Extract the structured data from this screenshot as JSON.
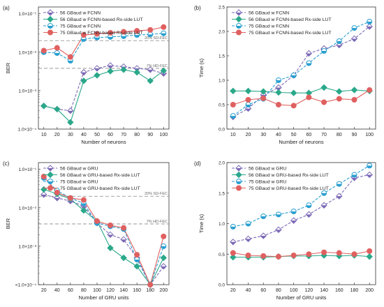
{
  "chart_data": [
    {
      "type": "line",
      "panel_label": "(a)",
      "xlabel": "Number of neurons",
      "ylabel": "BER",
      "yscale": "log",
      "x": [
        10,
        20,
        30,
        40,
        50,
        60,
        70,
        80,
        90,
        100
      ],
      "xticks": [
        "10",
        "20",
        "30",
        "40",
        "50",
        "60",
        "70",
        "80",
        "90",
        "100"
      ],
      "ylim": [
        0.0001,
        0.15
      ],
      "yticks": [
        {
          "value": 0.0001,
          "label": "1.0×10⁻⁴"
        },
        {
          "value": 0.001,
          "label": "1.0×10⁻³"
        },
        {
          "value": 0.01,
          "label": "1.0×10⁻²"
        },
        {
          "value": 0.1,
          "label": "1.0×10⁻¹"
        }
      ],
      "thresholds": [
        {
          "value": 0.02,
          "label": "20% SD-FEC"
        },
        {
          "value": 0.0038,
          "label": "7% HD-FEC"
        }
      ],
      "legend_position": "top-left",
      "grid": false,
      "series": [
        {
          "name": "56 GBaud w FCNN",
          "color": "#7b68b5",
          "marker": "diamond-half",
          "dashed": true,
          "values": [
            0.0004,
            0.00033,
            0.0003,
            0.003,
            0.0038,
            0.0045,
            0.0042,
            0.0038,
            0.0035,
            0.0028
          ]
        },
        {
          "name": "56 GBaud w FCNN-based Rx-side LUT",
          "color": "#2aa88a",
          "marker": "diamond",
          "dashed": false,
          "values": [
            0.0004,
            0.00033,
            0.00015,
            0.0018,
            0.0025,
            0.0032,
            0.0035,
            0.003,
            0.0018,
            0.0033
          ]
        },
        {
          "name": "75 GBaud w FCNN",
          "color": "#2a9fd0",
          "marker": "circle-half",
          "dashed": true,
          "values": [
            0.01,
            0.0095,
            0.006,
            0.022,
            0.024,
            0.025,
            0.026,
            0.028,
            0.029,
            0.031
          ]
        },
        {
          "name": "75 GBaud w FCNN-based Rx-side LUT",
          "color": "#e06060",
          "marker": "circle",
          "dashed": false,
          "values": [
            0.011,
            0.013,
            0.0075,
            0.028,
            0.03,
            0.032,
            0.034,
            0.036,
            0.038,
            0.045
          ]
        }
      ]
    },
    {
      "type": "line",
      "panel_label": "(b)",
      "xlabel": "Number of neurons",
      "ylabel": "Time (s)",
      "yscale": "linear",
      "x": [
        10,
        20,
        30,
        40,
        50,
        60,
        70,
        80,
        90,
        100
      ],
      "xticks": [
        "10",
        "20",
        "30",
        "40",
        "50",
        "60",
        "70",
        "80",
        "90",
        "100"
      ],
      "ylim": [
        0,
        2.5
      ],
      "yticks": [
        {
          "value": 0,
          "label": "0.0"
        },
        {
          "value": 0.5,
          "label": "0.5"
        },
        {
          "value": 1.0,
          "label": "1.0"
        },
        {
          "value": 1.5,
          "label": "1.5"
        },
        {
          "value": 2.0,
          "label": "2.0"
        },
        {
          "value": 2.5,
          "label": "2.5"
        }
      ],
      "legend_position": "top-left",
      "grid": false,
      "series": [
        {
          "name": "56 GBaud w FCNN",
          "color": "#7b68b5",
          "marker": "diamond-half",
          "dashed": true,
          "values": [
            0.25,
            0.42,
            0.7,
            0.85,
            1.1,
            1.55,
            1.65,
            1.72,
            1.85,
            2.1
          ]
        },
        {
          "name": "56 GBaud w FCNN-based Rx-side LUT",
          "color": "#2aa88a",
          "marker": "diamond",
          "dashed": false,
          "values": [
            0.78,
            0.78,
            0.77,
            0.75,
            0.74,
            0.74,
            0.85,
            0.77,
            0.8,
            0.78
          ]
        },
        {
          "name": "75 GBaud w FCNN",
          "color": "#2a9fd0",
          "marker": "circle-half",
          "dashed": true,
          "values": [
            0.27,
            0.5,
            0.62,
            1.0,
            1.1,
            1.35,
            1.6,
            1.8,
            2.07,
            2.2
          ]
        },
        {
          "name": "75 GBaud w FCNN-based Rx-side LUT",
          "color": "#e06060",
          "marker": "circle",
          "dashed": false,
          "values": [
            0.5,
            0.6,
            0.63,
            0.5,
            0.48,
            0.65,
            0.55,
            0.62,
            0.6,
            0.8
          ]
        }
      ]
    },
    {
      "type": "line",
      "panel_label": "(c)",
      "xlabel": "Number of GRU units",
      "ylabel": "BER",
      "yscale": "log",
      "x": [
        20,
        40,
        60,
        80,
        100,
        120,
        140,
        160,
        180,
        200
      ],
      "xticks": [
        "20",
        "40",
        "60",
        "80",
        "100",
        "120",
        "140",
        "160",
        "180",
        "200"
      ],
      "ylim": [
        0.0001,
        0.15
      ],
      "yticks": [
        {
          "value": 0.0001,
          "label": "<1.0×10⁻⁴"
        },
        {
          "value": 0.001,
          "label": "1.0×10⁻³"
        },
        {
          "value": 0.01,
          "label": "1.0×10⁻²"
        },
        {
          "value": 0.1,
          "label": "1.0×10⁻¹"
        }
      ],
      "thresholds": [
        {
          "value": 0.02,
          "label": "20% SD-FEC"
        },
        {
          "value": 0.0038,
          "label": "7% HD-FEC"
        }
      ],
      "legend_position": "top-left",
      "grid": false,
      "series": [
        {
          "name": "56 GBaud w GRU",
          "color": "#7b68b5",
          "marker": "diamond-half",
          "dashed": true,
          "values": [
            0.022,
            0.018,
            0.015,
            0.011,
            0.004,
            0.002,
            0.0015,
            0.0005,
            0.0001,
            0.0003
          ]
        },
        {
          "name": "56 GBaud w GRU-based Rx-side LUT",
          "color": "#2aa88a",
          "marker": "diamond",
          "dashed": false,
          "values": [
            0.03,
            0.023,
            0.017,
            0.0085,
            0.0045,
            0.0009,
            0.0005,
            0.0003,
            0.0001,
            0.0005
          ]
        },
        {
          "name": "75 GBaud w GRU",
          "color": "#2a9fd0",
          "marker": "circle-half",
          "dashed": true,
          "values": [
            0.06,
            0.028,
            0.018,
            0.013,
            0.004,
            0.0033,
            0.0028,
            0.00045,
            0.0001,
            0.001
          ]
        },
        {
          "name": "75 GBaud w GRU-based Rx-side LUT",
          "color": "#e06060",
          "marker": "circle",
          "dashed": false,
          "values": [
            0.065,
            0.025,
            0.018,
            0.016,
            0.0045,
            0.0035,
            0.003,
            0.0006,
            0.0001,
            0.0018
          ]
        }
      ]
    },
    {
      "type": "line",
      "panel_label": "(d)",
      "xlabel": "Number of GRU units",
      "ylabel": "Time (s)",
      "yscale": "linear",
      "x": [
        20,
        40,
        60,
        80,
        100,
        120,
        140,
        160,
        180,
        200
      ],
      "xticks": [
        "20",
        "40",
        "60",
        "80",
        "100",
        "120",
        "140",
        "160",
        "180",
        "200"
      ],
      "ylim": [
        0,
        2.0
      ],
      "yticks": [
        {
          "value": 0,
          "label": "0.0"
        },
        {
          "value": 0.5,
          "label": "0.5"
        },
        {
          "value": 1.0,
          "label": "1.0"
        },
        {
          "value": 1.5,
          "label": "1.5"
        },
        {
          "value": 2.0,
          "label": "2.0"
        }
      ],
      "legend_position": "top-left",
      "grid": false,
      "series": [
        {
          "name": "56 GBaud w GRU",
          "color": "#7b68b5",
          "marker": "diamond-half",
          "dashed": true,
          "values": [
            0.7,
            0.75,
            0.8,
            0.9,
            1.05,
            1.15,
            1.3,
            1.45,
            1.75,
            1.8
          ]
        },
        {
          "name": "56 GBaud w GRU-based Rx-side LUT",
          "color": "#2aa88a",
          "marker": "diamond",
          "dashed": false,
          "values": [
            0.45,
            0.45,
            0.45,
            0.46,
            0.47,
            0.47,
            0.48,
            0.47,
            0.48,
            0.46
          ]
        },
        {
          "name": "75 GBaud w GRU",
          "color": "#2a9fd0",
          "marker": "circle-half",
          "dashed": true,
          "values": [
            0.95,
            1.0,
            1.12,
            1.15,
            1.2,
            1.3,
            1.5,
            1.65,
            1.8,
            1.95
          ]
        },
        {
          "name": "75 GBaud w GRU-based Rx-side LUT",
          "color": "#e06060",
          "marker": "circle",
          "dashed": false,
          "values": [
            0.52,
            0.48,
            0.47,
            0.46,
            0.48,
            0.5,
            0.53,
            0.52,
            0.5,
            0.55
          ]
        }
      ]
    }
  ]
}
